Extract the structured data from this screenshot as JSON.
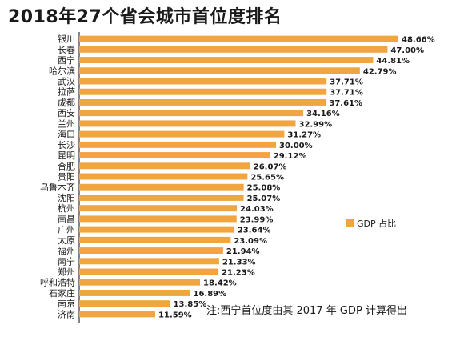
{
  "chart_data": {
    "type": "bar",
    "orientation": "horizontal",
    "title": "2018年27个省会城市首位度排名",
    "categories": [
      "银川",
      "长春",
      "西宁",
      "哈尔滨",
      "武汉",
      "拉萨",
      "成都",
      "西安",
      "兰州",
      "海口",
      "长沙",
      "昆明",
      "合肥",
      "贵阳",
      "乌鲁木齐",
      "沈阳",
      "杭州",
      "南昌",
      "广州",
      "太原",
      "福州",
      "南宁",
      "郑州",
      "呼和浩特",
      "石家庄",
      "南京",
      "济南"
    ],
    "series": [
      {
        "name": "GDP 占比",
        "values": [
          48.66,
          47.0,
          44.81,
          42.79,
          37.71,
          37.71,
          37.61,
          34.16,
          32.99,
          31.27,
          30.0,
          29.12,
          26.07,
          25.65,
          25.08,
          25.07,
          24.03,
          23.99,
          23.64,
          23.09,
          21.94,
          21.33,
          21.23,
          18.42,
          16.89,
          13.85,
          11.59
        ],
        "labels": [
          "48.66%",
          "47.00%",
          "44.81%",
          "42.79%",
          "37.71%",
          "37.71%",
          "37.61%",
          "34.16%",
          "32.99%",
          "31.27%",
          "30.00%",
          "29.12%",
          "26.07%",
          "25.65%",
          "25.08%",
          "25.07%",
          "24.03%",
          "23.99%",
          "23.64%",
          "23.09%",
          "21.94%",
          "21.33%",
          "21.23%",
          "18.42%",
          "16.89%",
          "13.85%",
          "11.59%"
        ]
      }
    ],
    "xlim": [
      0,
      48.66
    ],
    "grid": false,
    "legend": "right",
    "annotation": "注:西宁首位度由其 2017 年 GDP 计算得出",
    "colors": {
      "bar": "#F0A540",
      "text": "#1a1a1a",
      "axis": "#333333"
    }
  }
}
